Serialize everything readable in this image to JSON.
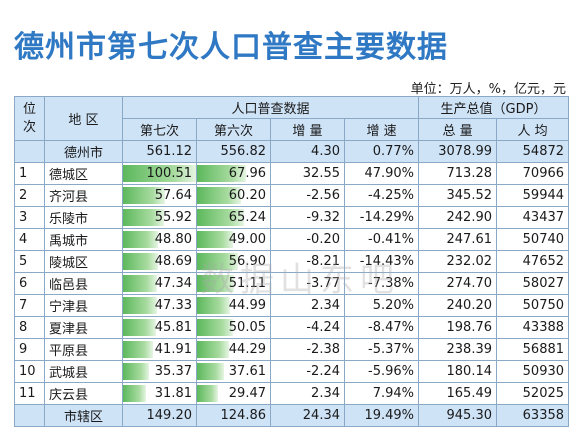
{
  "title": "德州市第七次人口普查主要数据",
  "unit_label": "单位：万人，%，亿元，元",
  "watermark": "数据山东吧",
  "headers": {
    "rank": "位次",
    "region": "地 区",
    "pop_group": "人口普查数据",
    "gdp_group": "生产总值（GDP）",
    "seventh": "第七次",
    "sixth": "第六次",
    "increase": "增 量",
    "growth": "增 速",
    "total": "总 量",
    "per_capita": "人 均"
  },
  "summary": {
    "region": "德州市",
    "seventh": "561.12",
    "sixth": "556.82",
    "increase": "4.30",
    "growth": "0.77%",
    "total": "3078.99",
    "per_capita": "54872"
  },
  "bar_scale_max": 100.51,
  "rows": [
    {
      "rank": "1",
      "region": "德城区",
      "seventh": "100.51",
      "sixth": "67.96",
      "increase": "32.55",
      "growth": "47.90%",
      "total": "713.28",
      "per_capita": "70966"
    },
    {
      "rank": "2",
      "region": "齐河县",
      "seventh": "57.64",
      "sixth": "60.20",
      "increase": "-2.56",
      "growth": "-4.25%",
      "total": "345.52",
      "per_capita": "59944"
    },
    {
      "rank": "3",
      "region": "乐陵市",
      "seventh": "55.92",
      "sixth": "65.24",
      "increase": "-9.32",
      "growth": "-14.29%",
      "total": "242.90",
      "per_capita": "43437"
    },
    {
      "rank": "4",
      "region": "禹城市",
      "seventh": "48.80",
      "sixth": "49.00",
      "increase": "-0.20",
      "growth": "-0.41%",
      "total": "247.61",
      "per_capita": "50740"
    },
    {
      "rank": "5",
      "region": "陵城区",
      "seventh": "48.69",
      "sixth": "56.90",
      "increase": "-8.21",
      "growth": "-14.43%",
      "total": "232.02",
      "per_capita": "47652"
    },
    {
      "rank": "6",
      "region": "临邑县",
      "seventh": "47.34",
      "sixth": "51.11",
      "increase": "-3.77",
      "growth": "-7.38%",
      "total": "274.70",
      "per_capita": "58027"
    },
    {
      "rank": "7",
      "region": "宁津县",
      "seventh": "47.33",
      "sixth": "44.99",
      "increase": "2.34",
      "growth": "5.20%",
      "total": "240.20",
      "per_capita": "50750"
    },
    {
      "rank": "8",
      "region": "夏津县",
      "seventh": "45.81",
      "sixth": "50.05",
      "increase": "-4.24",
      "growth": "-8.47%",
      "total": "198.76",
      "per_capita": "43388"
    },
    {
      "rank": "9",
      "region": "平原县",
      "seventh": "41.91",
      "sixth": "44.29",
      "increase": "-2.38",
      "growth": "-5.37%",
      "total": "238.39",
      "per_capita": "56881"
    },
    {
      "rank": "10",
      "region": "武城县",
      "seventh": "35.37",
      "sixth": "37.61",
      "increase": "-2.24",
      "growth": "-5.96%",
      "total": "180.14",
      "per_capita": "50930"
    },
    {
      "rank": "11",
      "region": "庆云县",
      "seventh": "31.81",
      "sixth": "29.47",
      "increase": "2.34",
      "growth": "7.94%",
      "total": "165.49",
      "per_capita": "52025"
    }
  ],
  "footer_row": {
    "region": "市辖区",
    "seventh": "149.20",
    "sixth": "124.86",
    "increase": "24.34",
    "growth": "19.49%",
    "total": "945.30",
    "per_capita": "63358"
  }
}
